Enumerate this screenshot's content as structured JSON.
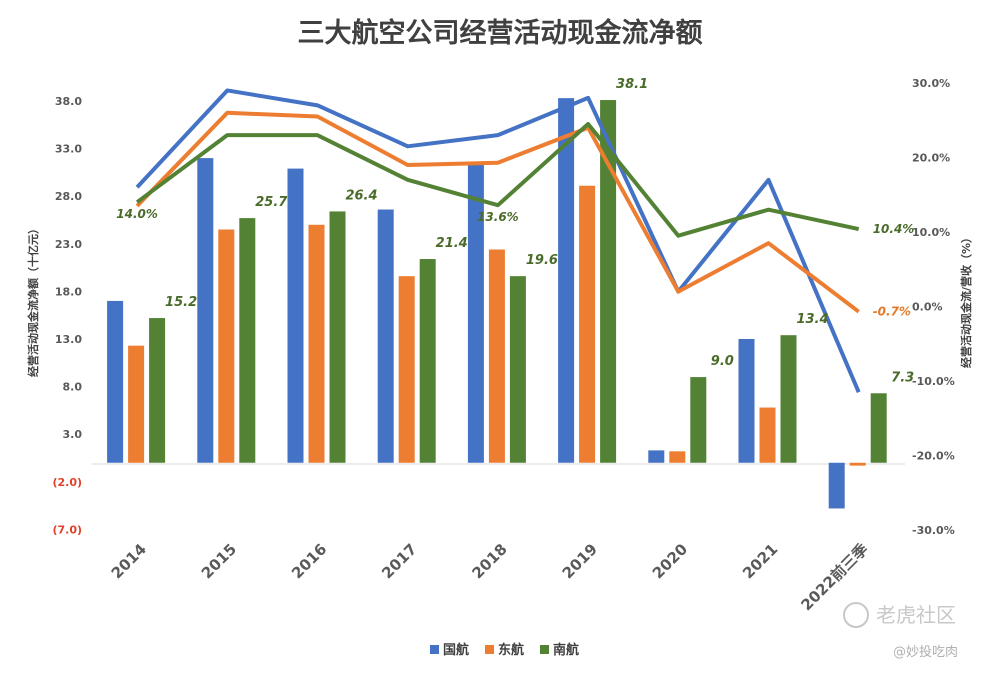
{
  "chart_data": {
    "type": "bar",
    "title": "三大航空公司经营活动现金流净额",
    "ylabel": "经营活动现金流净额（十亿元）",
    "y2label": "经营活动现金流/营收（%）",
    "ylim": [
      -7,
      42
    ],
    "y2lim": [
      -30,
      30
    ],
    "y_ticks": [
      "38.0",
      "33.0",
      "28.0",
      "23.0",
      "18.0",
      "13.0",
      "8.0",
      "3.0",
      "(2.0)",
      "(7.0)"
    ],
    "y2_ticks": [
      "30.0%",
      "20.0%",
      "10.0%",
      "0.0%",
      "-10.0%",
      "-20.0%",
      "-30.0%"
    ],
    "categories": [
      "2014",
      "2015",
      "2016",
      "2017",
      "2018",
      "2019",
      "2020",
      "2021",
      "2022前三季"
    ],
    "series": [
      {
        "name": "国航",
        "type": "bar",
        "color": "#4472c4",
        "values": [
          17.0,
          32.0,
          30.9,
          26.6,
          31.6,
          38.3,
          1.3,
          13.0,
          -4.8
        ]
      },
      {
        "name": "东航",
        "type": "bar",
        "color": "#ed7d31",
        "values": [
          12.3,
          24.5,
          25.0,
          19.6,
          22.4,
          29.1,
          1.2,
          5.8,
          -0.3
        ]
      },
      {
        "name": "南航",
        "type": "bar",
        "color": "#548235",
        "values": [
          15.2,
          25.7,
          26.4,
          21.4,
          19.6,
          38.1,
          9.0,
          13.4,
          7.3
        ]
      }
    ],
    "ratio_series": [
      {
        "name": "国航",
        "color": "#4472c4",
        "values": [
          16.0,
          29.0,
          27.0,
          21.5,
          23.0,
          28.0,
          2.0,
          17.0,
          -11.5
        ]
      },
      {
        "name": "东航",
        "color": "#ed7d31",
        "values": [
          13.5,
          26.0,
          25.5,
          19.0,
          19.3,
          24.0,
          2.0,
          8.5,
          -0.7
        ]
      },
      {
        "name": "南航",
        "color": "#548235",
        "values": [
          14.0,
          23.0,
          23.0,
          17.0,
          13.6,
          24.5,
          9.5,
          13.0,
          10.4
        ]
      }
    ],
    "bar_data_labels": [
      "15.2",
      "25.7",
      "26.4",
      "21.4",
      "19.6",
      "38.1",
      "9.0",
      "13.4",
      "7.3"
    ],
    "pct_labels": [
      {
        "category": "2014",
        "text": "14.0%",
        "color": "green"
      },
      {
        "category": "2018",
        "text": "13.6%",
        "color": "green"
      },
      {
        "category": "2022前三季",
        "text": "10.4%",
        "color": "green"
      },
      {
        "category": "2022前三季",
        "text": "-0.7%",
        "color": "orange"
      }
    ],
    "legend": [
      "国航",
      "东航",
      "南航"
    ],
    "legend_position": "bottom"
  },
  "watermark": {
    "site": "老虎社区",
    "user": "@妙投吃肉"
  }
}
